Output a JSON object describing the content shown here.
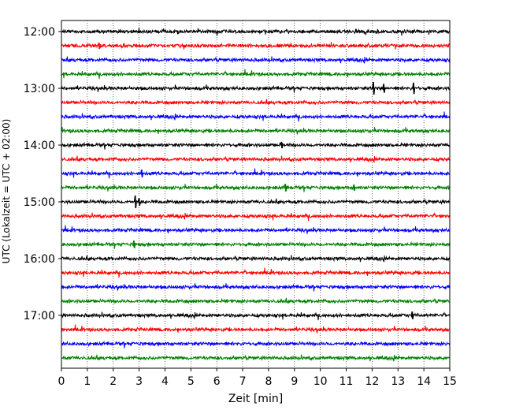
{
  "chart_data": {
    "type": "line",
    "title": "",
    "xlabel": "Zeit  [min]",
    "ylabel": "UTC (Lokalzeit = UTC + 02:00)",
    "xlim": [
      0,
      15
    ],
    "x_ticks": [
      0,
      1,
      2,
      3,
      4,
      5,
      6,
      7,
      8,
      9,
      10,
      11,
      12,
      13,
      14,
      15
    ],
    "x_tick_labels": [
      "0",
      "1",
      "2",
      "3",
      "4",
      "5",
      "6",
      "7",
      "8",
      "9",
      "10",
      "11",
      "12",
      "13",
      "14",
      "15"
    ],
    "y_tick_labels": [
      "12:00",
      "13:00",
      "14:00",
      "15:00",
      "16:00",
      "17:00"
    ],
    "grid": "vertical dotted",
    "trace_colors": [
      "#000000",
      "#ff0000",
      "#0000ff",
      "#008000"
    ],
    "traces_per_hour": 4,
    "minutes_per_trace": 15,
    "start_time": "12:00",
    "trace_count": 24,
    "spikes": [
      {
        "trace": 4,
        "minute": 12.05,
        "amplitude": 1.0
      },
      {
        "trace": 4,
        "minute": 12.45,
        "amplitude": 0.7
      },
      {
        "trace": 4,
        "minute": 13.6,
        "amplitude": 0.9
      },
      {
        "trace": 12,
        "minute": 2.85,
        "amplitude": 1.0
      },
      {
        "trace": 12,
        "minute": 3.0,
        "amplitude": 0.6
      },
      {
        "trace": 11,
        "minute": 8.65,
        "amplitude": 0.6
      },
      {
        "trace": 11,
        "minute": 11.3,
        "amplitude": 0.5
      },
      {
        "trace": 10,
        "minute": 3.1,
        "amplitude": 0.6
      },
      {
        "trace": 15,
        "minute": 2.8,
        "amplitude": 0.6
      },
      {
        "trace": 20,
        "minute": 13.55,
        "amplitude": 0.6
      },
      {
        "trace": 8,
        "minute": 8.5,
        "amplitude": 0.5
      },
      {
        "trace": 1,
        "minute": 1.45,
        "amplitude": 0.5
      }
    ]
  }
}
